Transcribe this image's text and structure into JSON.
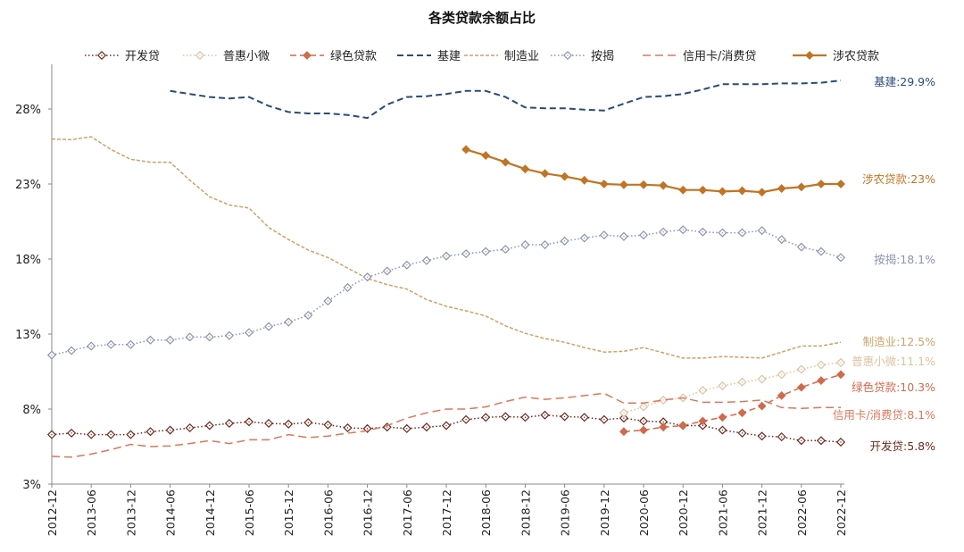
{
  "chart_data": {
    "type": "line",
    "title": "各类贷款余额占比",
    "xlabel": "",
    "ylabel": "",
    "ylim": [
      3,
      30
    ],
    "yticks": [
      "3%",
      "8%",
      "13%",
      "18%",
      "23%",
      "28%"
    ],
    "ytick_values": [
      3,
      8,
      13,
      18,
      23,
      28
    ],
    "xtick_labels": [
      "2012-12",
      "2013-06",
      "2013-12",
      "2014-06",
      "2014-12",
      "2015-06",
      "2015-12",
      "2016-06",
      "2016-12",
      "2017-06",
      "2017-12",
      "2018-06",
      "2018-12",
      "2019-06",
      "2019-12",
      "2020-06",
      "2020-12",
      "2021-06",
      "2021-12",
      "2022-06",
      "2022-12"
    ],
    "x": [
      "2012-12",
      "2013-03",
      "2013-06",
      "2013-09",
      "2013-12",
      "2014-03",
      "2014-06",
      "2014-09",
      "2014-12",
      "2015-03",
      "2015-06",
      "2015-09",
      "2015-12",
      "2016-03",
      "2016-06",
      "2016-09",
      "2016-12",
      "2017-03",
      "2017-06",
      "2017-09",
      "2017-12",
      "2018-03",
      "2018-06",
      "2018-09",
      "2018-12",
      "2019-03",
      "2019-06",
      "2019-09",
      "2019-12",
      "2020-03",
      "2020-06",
      "2020-09",
      "2020-12",
      "2021-03",
      "2021-06",
      "2021-09",
      "2021-12",
      "2022-03",
      "2022-06",
      "2022-09",
      "2022-12"
    ],
    "grid": false,
    "legend_position": "top",
    "series": [
      {
        "name": "开发贷",
        "color": "#6b2a1e",
        "style": "dotted",
        "marker": "diamond-open",
        "end_label": "开发贷:5.8%",
        "values": [
          6.3,
          6.4,
          6.3,
          6.3,
          6.3,
          6.5,
          6.6,
          6.75,
          6.9,
          7.05,
          7.15,
          7.05,
          7.0,
          7.1,
          6.95,
          6.75,
          6.7,
          6.8,
          6.7,
          6.8,
          6.9,
          7.3,
          7.45,
          7.5,
          7.45,
          7.6,
          7.5,
          7.45,
          7.3,
          7.4,
          7.2,
          7.15,
          6.9,
          6.9,
          6.6,
          6.4,
          6.2,
          6.15,
          5.9,
          5.9,
          5.8
        ]
      },
      {
        "name": "普惠小微",
        "color": "#dcc3a0",
        "style": "dotted",
        "marker": "diamond-open",
        "end_label": "普惠小微:11.1%",
        "values": [
          null,
          null,
          null,
          null,
          null,
          null,
          null,
          null,
          null,
          null,
          null,
          null,
          null,
          null,
          null,
          null,
          null,
          null,
          null,
          null,
          null,
          null,
          null,
          null,
          null,
          null,
          null,
          null,
          null,
          7.75,
          8.15,
          8.6,
          8.75,
          9.25,
          9.55,
          9.8,
          10.0,
          10.3,
          10.65,
          10.95,
          11.1
        ]
      },
      {
        "name": "绿色贷款",
        "color": "#cf6a4c",
        "style": "dashed",
        "marker": "diamond-filled",
        "end_label": "绿色贷款:10.3%",
        "values": [
          null,
          null,
          null,
          null,
          null,
          null,
          null,
          null,
          null,
          null,
          null,
          null,
          null,
          null,
          null,
          null,
          null,
          null,
          null,
          null,
          null,
          null,
          null,
          null,
          null,
          null,
          null,
          null,
          null,
          6.5,
          6.6,
          6.8,
          6.9,
          7.2,
          7.45,
          7.75,
          8.2,
          8.9,
          9.45,
          9.9,
          10.3
        ]
      },
      {
        "name": "基建",
        "color": "#2b4a78",
        "style": "dashed",
        "marker": "none",
        "end_label": "基建:29.9%",
        "values": [
          null,
          null,
          null,
          null,
          null,
          null,
          29.2,
          29.0,
          28.8,
          28.7,
          28.8,
          28.2,
          27.8,
          27.7,
          27.7,
          27.6,
          27.4,
          28.3,
          28.8,
          28.85,
          29.0,
          29.2,
          29.2,
          28.8,
          28.1,
          28.05,
          28.05,
          27.95,
          27.9,
          28.35,
          28.8,
          28.85,
          29.0,
          29.3,
          29.65,
          29.65,
          29.65,
          29.7,
          29.7,
          29.75,
          29.9
        ]
      },
      {
        "name": "制造业",
        "color": "#c9a46a",
        "style": "short-dashed",
        "marker": "none",
        "end_label": "制造业:12.5%",
        "values": [
          26.0,
          25.95,
          26.15,
          25.3,
          24.65,
          24.45,
          24.45,
          23.25,
          22.15,
          21.6,
          21.4,
          20.1,
          19.3,
          18.6,
          18.1,
          17.4,
          16.7,
          16.3,
          16.0,
          15.3,
          14.85,
          14.55,
          14.2,
          13.55,
          13.05,
          12.7,
          12.45,
          12.1,
          11.8,
          11.85,
          12.1,
          11.75,
          11.4,
          11.4,
          11.5,
          11.45,
          11.4,
          11.8,
          12.2,
          12.2,
          12.45
        ]
      },
      {
        "name": "按揭",
        "color": "#8e93ad",
        "style": "dotted",
        "marker": "diamond-open",
        "end_label": "按揭:18.1%",
        "values": [
          11.6,
          11.9,
          12.2,
          12.3,
          12.3,
          12.6,
          12.6,
          12.8,
          12.8,
          12.9,
          13.1,
          13.5,
          13.8,
          14.25,
          15.2,
          16.1,
          16.8,
          17.2,
          17.6,
          17.9,
          18.2,
          18.35,
          18.5,
          18.65,
          18.95,
          18.95,
          19.2,
          19.4,
          19.6,
          19.5,
          19.6,
          19.8,
          19.95,
          19.8,
          19.75,
          19.75,
          19.9,
          19.3,
          18.8,
          18.5,
          18.1
        ]
      },
      {
        "name": "信用卡/消费贷",
        "color": "#d9785a",
        "style": "long-dashed",
        "marker": "none",
        "end_label": "信用卡/消费贷:8.1%",
        "values": [
          4.85,
          4.8,
          5.0,
          5.3,
          5.65,
          5.5,
          5.55,
          5.7,
          5.9,
          5.7,
          5.95,
          5.95,
          6.3,
          6.1,
          6.2,
          6.4,
          6.55,
          6.9,
          7.4,
          7.75,
          8.0,
          8.0,
          8.15,
          8.5,
          8.8,
          8.65,
          8.75,
          8.9,
          9.05,
          8.4,
          8.4,
          8.6,
          8.75,
          8.45,
          8.45,
          8.5,
          8.6,
          8.1,
          8.05,
          8.1,
          8.1
        ]
      },
      {
        "name": "涉农贷款",
        "color": "#c07424",
        "style": "solid",
        "marker": "diamond-filled",
        "end_label": "涉农贷款:23%",
        "values": [
          null,
          null,
          null,
          null,
          null,
          null,
          null,
          null,
          null,
          null,
          null,
          null,
          null,
          null,
          null,
          null,
          null,
          null,
          null,
          null,
          null,
          25.3,
          24.9,
          24.45,
          24.0,
          23.7,
          23.5,
          23.25,
          23.0,
          22.95,
          22.95,
          22.9,
          22.6,
          22.6,
          22.5,
          22.55,
          22.45,
          22.7,
          22.8,
          23.0,
          23.0
        ]
      }
    ]
  }
}
